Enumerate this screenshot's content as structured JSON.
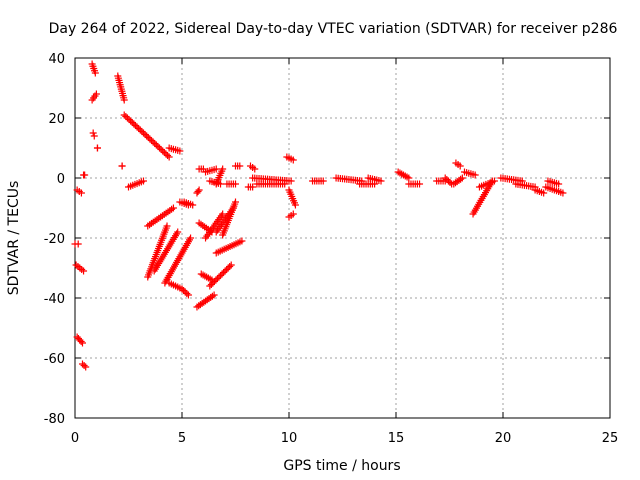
{
  "chart_data": {
    "type": "scatter",
    "title": "Day 264 of 2022, Sidereal Day-to-day VTEC variation (SDTVAR) for receiver p286",
    "xlabel": "GPS time / hours",
    "ylabel": "SDTVAR / TECUs",
    "xlim": [
      0,
      25
    ],
    "ylim": [
      -80,
      40
    ],
    "xticks": [
      0,
      5,
      10,
      15,
      20,
      25
    ],
    "yticks": [
      -80,
      -60,
      -40,
      -20,
      0,
      20,
      40
    ],
    "grid": true,
    "marker": "plus",
    "color": "#ff0000",
    "series": [
      {
        "name": "SDTVAR",
        "segments": [
          [
            0.0,
            -22,
            0.15,
            -22
          ],
          [
            0.05,
            -29,
            0.4,
            -31
          ],
          [
            0.1,
            -4,
            0.3,
            -5
          ],
          [
            0.1,
            -53,
            0.35,
            -55
          ],
          [
            0.35,
            -62,
            0.5,
            -63
          ],
          [
            0.4,
            1,
            0.45,
            1
          ],
          [
            0.8,
            38,
            0.95,
            35
          ],
          [
            0.8,
            26,
            1.0,
            28
          ],
          [
            0.85,
            15,
            0.9,
            14
          ],
          [
            1.05,
            10,
            1.05,
            10
          ],
          [
            2.0,
            34,
            2.3,
            26
          ],
          [
            2.2,
            4,
            2.2,
            4
          ],
          [
            2.3,
            21,
            4.4,
            7
          ],
          [
            2.5,
            -3,
            3.2,
            -1
          ],
          [
            4.4,
            10,
            4.9,
            9
          ],
          [
            4.9,
            -8,
            5.3,
            -9
          ],
          [
            3.4,
            -16,
            4.6,
            -10
          ],
          [
            3.4,
            -33,
            4.3,
            -16
          ],
          [
            3.7,
            -31,
            4.8,
            -18
          ],
          [
            4.2,
            -35,
            5.4,
            -20
          ],
          [
            4.4,
            -35,
            5.0,
            -37
          ],
          [
            5.0,
            -37,
            5.3,
            -39
          ],
          [
            5.1,
            -8,
            5.5,
            -9
          ],
          [
            5.7,
            -43,
            6.5,
            -39
          ],
          [
            5.7,
            -5,
            5.8,
            -4
          ],
          [
            5.8,
            3,
            6.0,
            3
          ],
          [
            5.8,
            -15,
            6.4,
            -18
          ],
          [
            5.9,
            -32,
            6.4,
            -34
          ],
          [
            6.1,
            2,
            6.6,
            3
          ],
          [
            6.1,
            -20,
            6.9,
            -12
          ],
          [
            6.3,
            -36,
            7.3,
            -29
          ],
          [
            6.3,
            -1,
            6.8,
            -2
          ],
          [
            6.6,
            -25,
            7.8,
            -21
          ],
          [
            6.6,
            -18,
            7.4,
            -10
          ],
          [
            6.6,
            -2,
            6.9,
            3
          ],
          [
            6.9,
            -19,
            7.5,
            -8
          ],
          [
            7.1,
            -2,
            7.5,
            -2
          ],
          [
            7.5,
            4,
            7.7,
            4
          ],
          [
            8.1,
            -3,
            8.3,
            -3
          ],
          [
            8.2,
            4,
            8.4,
            3
          ],
          [
            8.3,
            0,
            10.1,
            -1
          ],
          [
            8.5,
            -2,
            9.8,
            -2
          ],
          [
            9.9,
            7,
            10.2,
            6
          ],
          [
            10.0,
            -4,
            10.3,
            -9
          ],
          [
            10.0,
            -13,
            10.2,
            -12
          ],
          [
            11.1,
            -1,
            11.6,
            -1
          ],
          [
            12.2,
            0,
            13.4,
            -1
          ],
          [
            13.3,
            -2,
            14.0,
            -2
          ],
          [
            13.7,
            0,
            14.3,
            -1
          ],
          [
            15.1,
            2,
            15.6,
            0
          ],
          [
            15.6,
            -2,
            16.1,
            -2
          ],
          [
            16.9,
            -1,
            17.3,
            -1
          ],
          [
            17.3,
            0,
            17.6,
            -2
          ],
          [
            17.7,
            -2,
            18.1,
            0
          ],
          [
            17.8,
            5,
            18.0,
            4
          ],
          [
            18.2,
            2,
            18.7,
            1
          ],
          [
            18.6,
            -12,
            19.5,
            -1
          ],
          [
            18.9,
            -3,
            19.6,
            -1
          ],
          [
            19.9,
            0,
            20.9,
            -1
          ],
          [
            20.6,
            -2,
            21.5,
            -3
          ],
          [
            21.5,
            -4,
            21.9,
            -5
          ],
          [
            22.0,
            -3,
            22.8,
            -5
          ],
          [
            22.1,
            -1,
            22.6,
            -2
          ]
        ]
      }
    ]
  }
}
